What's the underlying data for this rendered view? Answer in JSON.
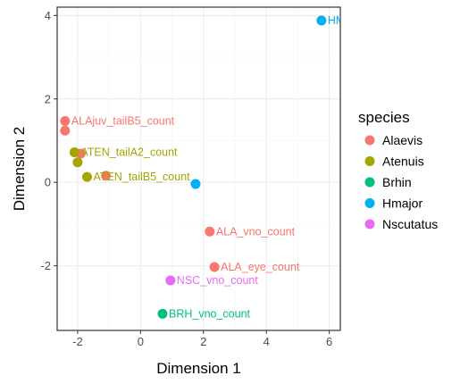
{
  "colors": {
    "Alaevis": "#F8766D",
    "Atenuis": "#A3A500",
    "Brhin": "#00BF7D",
    "Hmajor": "#00B0F6",
    "Nscutatus": "#E76BF3"
  },
  "chart_data": {
    "type": "scatter",
    "title": "",
    "xlabel": "Dimension 1",
    "ylabel": "Dimension 2",
    "xlim": [
      -2.65,
      6.35
    ],
    "ylim": [
      -3.55,
      4.2
    ],
    "x_ticks": [
      -2,
      0,
      2,
      4,
      6
    ],
    "x_tick_labels": [
      "-2",
      "0",
      "2",
      "4",
      "6"
    ],
    "y_ticks": [
      -2,
      0,
      2,
      4
    ],
    "y_tick_labels": [
      "-2",
      "0",
      "2",
      "4"
    ],
    "grid": true,
    "legend": {
      "title": "species",
      "position": "right",
      "entries": [
        "Alaevis",
        "Atenuis",
        "Brhin",
        "Hmajor",
        "Nscutatus"
      ]
    },
    "points": [
      {
        "x": -2.4,
        "y": 1.47,
        "species": "Alaevis",
        "label": "ALAjuv_tailB5_count"
      },
      {
        "x": -2.4,
        "y": 1.24,
        "species": "Alaevis",
        "label": ""
      },
      {
        "x": -1.9,
        "y": 0.69,
        "species": "Alaevis",
        "label": ""
      },
      {
        "x": -1.1,
        "y": 0.16,
        "species": "Alaevis",
        "label": ""
      },
      {
        "x": 2.2,
        "y": -1.18,
        "species": "Alaevis",
        "label": "ALA_vno_count"
      },
      {
        "x": 2.35,
        "y": -2.03,
        "species": "Alaevis",
        "label": "ALA_eye_count"
      },
      {
        "x": -2.1,
        "y": 0.72,
        "species": "Atenuis",
        "label": "ATEN_tailA2_count"
      },
      {
        "x": -2.0,
        "y": 0.48,
        "species": "Atenuis",
        "label": ""
      },
      {
        "x": -1.7,
        "y": 0.13,
        "species": "Atenuis",
        "label": "ATEN_tailB5_count"
      },
      {
        "x": 0.7,
        "y": -3.15,
        "species": "Brhin",
        "label": "BRH_vno_count"
      },
      {
        "x": 1.75,
        "y": -0.04,
        "species": "Hmajor",
        "label": ""
      },
      {
        "x": 5.75,
        "y": 3.88,
        "species": "Hmajor",
        "label": "HMA"
      },
      {
        "x": 0.95,
        "y": -2.35,
        "species": "Nscutatus",
        "label": "NSC_vno_count"
      }
    ]
  }
}
